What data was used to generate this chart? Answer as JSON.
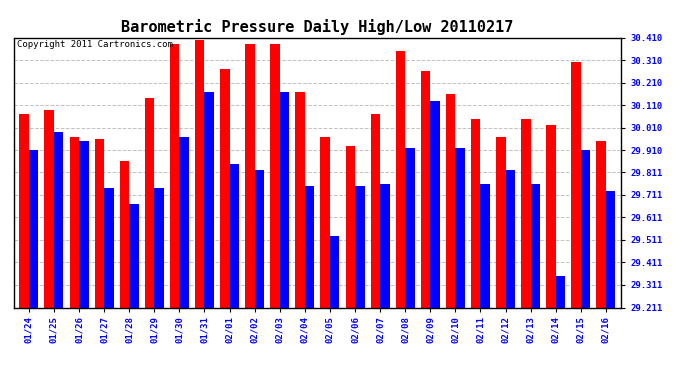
{
  "title": "Barometric Pressure Daily High/Low 20110217",
  "copyright": "Copyright 2011 Cartronics.com",
  "dates": [
    "01/24",
    "01/25",
    "01/26",
    "01/27",
    "01/28",
    "01/29",
    "01/30",
    "01/31",
    "02/01",
    "02/02",
    "02/03",
    "02/04",
    "02/05",
    "02/06",
    "02/07",
    "02/08",
    "02/09",
    "02/10",
    "02/11",
    "02/12",
    "02/13",
    "02/14",
    "02/15",
    "02/16"
  ],
  "highs": [
    30.07,
    30.09,
    29.97,
    29.96,
    29.86,
    30.14,
    30.38,
    30.4,
    30.27,
    30.38,
    30.38,
    30.17,
    29.97,
    29.93,
    30.07,
    30.35,
    30.26,
    30.16,
    30.05,
    29.97,
    30.05,
    30.02,
    30.3,
    29.95
  ],
  "lows": [
    29.91,
    29.99,
    29.95,
    29.74,
    29.67,
    29.74,
    29.97,
    30.17,
    29.85,
    29.82,
    30.17,
    29.75,
    29.53,
    29.75,
    29.76,
    29.92,
    30.13,
    29.92,
    29.76,
    29.82,
    29.76,
    29.35,
    29.91,
    29.73
  ],
  "ymin": 29.211,
  "ymax": 30.41,
  "yticks": [
    29.211,
    29.311,
    29.411,
    29.511,
    29.611,
    29.711,
    29.811,
    29.91,
    30.01,
    30.11,
    30.21,
    30.31,
    30.41
  ],
  "ytick_labels": [
    "29.211",
    "29.311",
    "29.411",
    "29.511",
    "29.611",
    "29.711",
    "29.811",
    "29.910",
    "30.010",
    "30.110",
    "30.210",
    "30.310",
    "30.410"
  ],
  "bar_width": 0.38,
  "high_color": "#ff0000",
  "low_color": "#0000ff",
  "background_color": "#ffffff",
  "grid_color": "#bbbbbb",
  "title_fontsize": 11,
  "tick_fontsize": 6.5,
  "copyright_fontsize": 6.5
}
